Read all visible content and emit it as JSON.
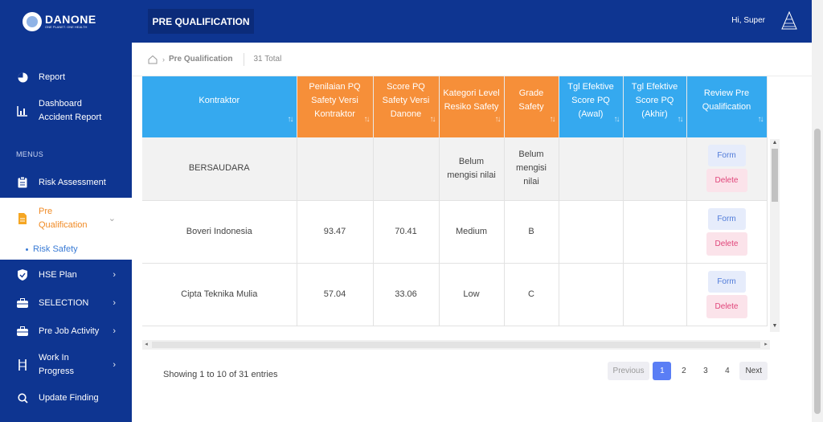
{
  "brand": {
    "name": "DANONE",
    "tagline": "ONE PLANET. ONE HEALTH"
  },
  "header": {
    "page_tab": "PRE QUALIFICATION",
    "greeting_prefix": "Hi,",
    "user_name": "Super"
  },
  "sidebar": {
    "top_items": [
      {
        "label": "Report",
        "icon": "pie-chart-icon"
      },
      {
        "label": "Dashboard Accident Report",
        "icon": "bar-chart-icon"
      }
    ],
    "menus_heading": "MENUS",
    "items": [
      {
        "label": "Risk Assessment",
        "icon": "clipboard-icon"
      },
      {
        "label": "Pre Qualification",
        "icon": "document-icon",
        "active": true
      },
      {
        "label": "HSE Plan",
        "icon": "shield-icon"
      },
      {
        "label": "SELECTION",
        "icon": "briefcase-icon"
      },
      {
        "label": "Pre Job Activity",
        "icon": "briefcase-icon"
      },
      {
        "label": "Work In Progress",
        "icon": "ladder-icon"
      },
      {
        "label": "Update Finding",
        "icon": "search-icon"
      }
    ],
    "subitem": "Risk Safety"
  },
  "breadcrumb": {
    "current": "Pre Qualification",
    "total": "31 Total"
  },
  "table": {
    "columns": [
      {
        "label": "Kontraktor",
        "color": "blue"
      },
      {
        "label": "Penilaian PQ Safety Versi Kontraktor",
        "color": "orange"
      },
      {
        "label": "Score PQ Safety Versi Danone",
        "color": "orange"
      },
      {
        "label": "Kategori Level Resiko Safety",
        "color": "orange"
      },
      {
        "label": "Grade Safety",
        "color": "orange"
      },
      {
        "label": "Tgl Efektive Score PQ (Awal)",
        "color": "blue"
      },
      {
        "label": "Tgl Efektive Score PQ (Akhir)",
        "color": "blue"
      },
      {
        "label": "Review Pre Qualification",
        "color": "blue"
      }
    ],
    "rows": [
      {
        "kontraktor": "BERSAUDARA",
        "pq_kontraktor": "",
        "pq_danone": "",
        "level": "Belum mengisi nilai",
        "grade": "Belum mengisi nilai",
        "awal": "",
        "akhir": ""
      },
      {
        "kontraktor": "Boveri Indonesia",
        "pq_kontraktor": "93.47",
        "pq_danone": "70.41",
        "level": "Medium",
        "grade": "B",
        "awal": "",
        "akhir": ""
      },
      {
        "kontraktor": "Cipta Teknika Mulia",
        "pq_kontraktor": "57.04",
        "pq_danone": "33.06",
        "level": "Low",
        "grade": "C",
        "awal": "",
        "akhir": ""
      }
    ],
    "form_label": "Form",
    "delete_label": "Delete"
  },
  "footer": {
    "entries_info": "Showing 1 to 10 of 31 entries",
    "pagination": {
      "previous": "Previous",
      "pages": [
        "1",
        "2",
        "3",
        "4"
      ],
      "active_page": "1",
      "next": "Next"
    }
  },
  "colors": {
    "navy": "#0e3591",
    "blue_header": "#35a9ef",
    "orange_header": "#f68f39",
    "active_orange": "#f08a24",
    "page_active": "#5a7ef5"
  }
}
